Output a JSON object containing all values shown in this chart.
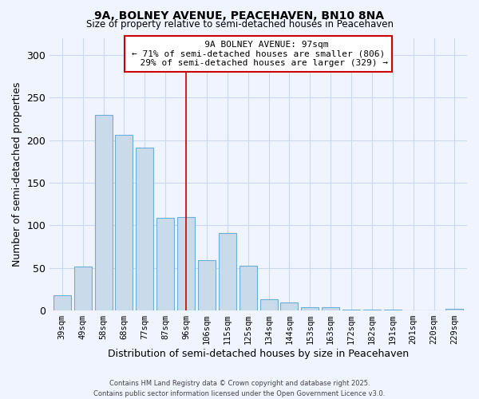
{
  "title": "9A, BOLNEY AVENUE, PEACEHAVEN, BN10 8NA",
  "subtitle": "Size of property relative to semi-detached houses in Peacehaven",
  "xlabel": "Distribution of semi-detached houses by size in Peacehaven",
  "ylabel": "Number of semi-detached properties",
  "categories": [
    "39sqm",
    "49sqm",
    "58sqm",
    "68sqm",
    "77sqm",
    "87sqm",
    "96sqm",
    "106sqm",
    "115sqm",
    "125sqm",
    "134sqm",
    "144sqm",
    "153sqm",
    "163sqm",
    "172sqm",
    "182sqm",
    "191sqm",
    "201sqm",
    "220sqm",
    "229sqm"
  ],
  "values": [
    18,
    52,
    230,
    206,
    191,
    109,
    110,
    59,
    91,
    53,
    13,
    9,
    4,
    4,
    1,
    1,
    1,
    0,
    0,
    2
  ],
  "bar_color": "#c9daea",
  "bar_edge_color": "#6baed6",
  "ylim": [
    0,
    320
  ],
  "yticks": [
    0,
    50,
    100,
    150,
    200,
    250,
    300
  ],
  "property_size": 97,
  "property_label": "9A BOLNEY AVENUE: 97sqm",
  "pct_smaller": 71,
  "n_smaller": 806,
  "pct_larger": 29,
  "n_larger": 329,
  "vline_color": "#cc0000",
  "annotation_box_edge_color": "#cc0000",
  "footer_line1": "Contains HM Land Registry data © Crown copyright and database right 2025.",
  "footer_line2": "Contains public sector information licensed under the Open Government Licence v3.0.",
  "bg_color": "#f0f4ff",
  "grid_color": "#c8d8f0",
  "vline_bar_index": 6
}
